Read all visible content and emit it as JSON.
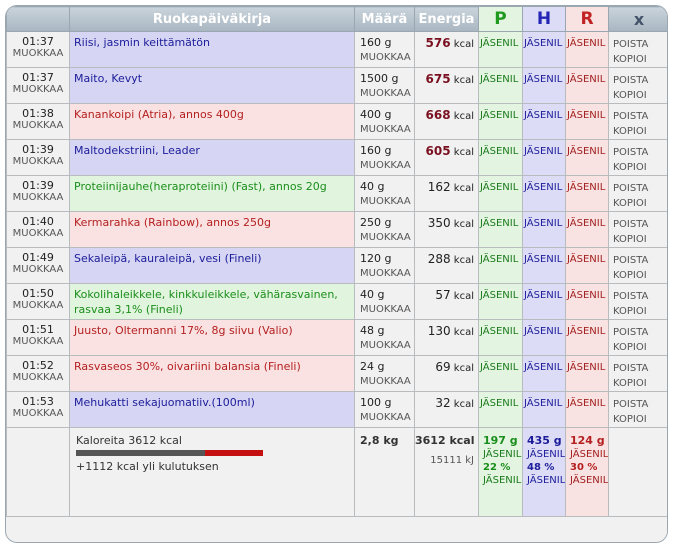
{
  "header": {
    "food": "Ruokapäiväkirja",
    "amount": "Määrä",
    "energy": "Energia",
    "p": "P",
    "h": "H",
    "r": "R",
    "close": "x"
  },
  "labels": {
    "edit": "MUOKKAA",
    "delete": "POISTA",
    "copy": "KOPIOI",
    "member": "JÄSENIL",
    "kcal": "kcal"
  },
  "entries": [
    {
      "time": "01:37",
      "food": "Riisi, jasmin keittämätön",
      "amount": "160 g",
      "energy": "576",
      "color": "blue",
      "high": true
    },
    {
      "time": "01:37",
      "food": "Maito, Kevyt",
      "amount": "1500 g",
      "energy": "675",
      "color": "blue",
      "high": true
    },
    {
      "time": "01:38",
      "food": "Kanankoipi (Atria), annos 400g",
      "amount": "400 g",
      "energy": "668",
      "color": "red",
      "high": true
    },
    {
      "time": "01:39",
      "food": "Maltodekstriini, Leader",
      "amount": "160 g",
      "energy": "605",
      "color": "blue",
      "high": true
    },
    {
      "time": "01:39",
      "food": "Proteiinijauhe(heraproteiini) (Fast), annos 20g",
      "amount": "40 g",
      "energy": "162",
      "color": "green",
      "high": false
    },
    {
      "time": "01:40",
      "food": "Kermarahka (Rainbow), annos 250g",
      "amount": "250 g",
      "energy": "350",
      "color": "red",
      "high": false
    },
    {
      "time": "01:49",
      "food": "Sekaleipä, kauraleipä, vesi (Fineli)",
      "amount": "120 g",
      "energy": "288",
      "color": "blue",
      "high": false
    },
    {
      "time": "01:50",
      "food": "Kokolihaleikkele, kinkkuleikkele, vähärasvainen, rasvaa 3,1% (Fineli)",
      "amount": "40 g",
      "energy": "57",
      "color": "green",
      "high": false
    },
    {
      "time": "01:51",
      "food": "Juusto, Oltermanni 17%, 8g siivu (Valio)",
      "amount": "48 g",
      "energy": "130",
      "color": "red",
      "high": false
    },
    {
      "time": "01:52",
      "food": "Rasvaseos 30%, oivariini balansia (Fineli)",
      "amount": "24 g",
      "energy": "69",
      "color": "red",
      "high": false
    },
    {
      "time": "01:53",
      "food": "Mehukatti sekajuomatiiv.(100ml)",
      "amount": "100 g",
      "energy": "32",
      "color": "blue",
      "high": false
    }
  ],
  "summary": {
    "calories": "Kaloreita 3612 kcal",
    "over": "+1112 kcal yli kulutuksen",
    "total_amount": "2,8 kg",
    "total_kcal": "3612 kcal",
    "total_kj": "15111 kJ",
    "p_grams": "197 g",
    "h_grams": "435 g",
    "r_grams": "124 g",
    "p_pct": "22 %",
    "h_pct": "48 %",
    "r_pct": "30 %",
    "consumption_kcal": 2500,
    "intake_kcal": 3612
  }
}
